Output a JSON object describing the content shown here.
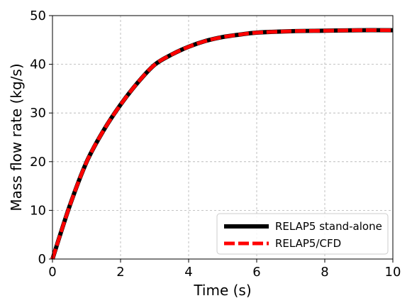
{
  "chart_data": {
    "type": "line",
    "xlabel": "Time (s)",
    "ylabel": "Mass flow rate (kg/s)",
    "xlim": [
      0,
      10
    ],
    "ylim": [
      0,
      50
    ],
    "xticks": [
      0,
      2,
      4,
      6,
      8,
      10
    ],
    "yticks": [
      0,
      10,
      20,
      30,
      40,
      50
    ],
    "xtick_labels": [
      "0",
      "2",
      "4",
      "6",
      "8",
      "10"
    ],
    "ytick_labels": [
      "0",
      "10",
      "20",
      "30",
      "40",
      "50"
    ],
    "grid": true,
    "legend_position": "bottom-right",
    "series": [
      {
        "name": "RELAP5 stand-alone",
        "color": "#000000",
        "style": "solid",
        "x": [
          0,
          0.5,
          1,
          1.5,
          2,
          2.5,
          3,
          3.5,
          4,
          4.5,
          5,
          5.5,
          6,
          7,
          8,
          9,
          10
        ],
        "y": [
          0,
          10.8,
          19.9,
          26.4,
          31.7,
          36.2,
          39.9,
          42.0,
          43.6,
          44.8,
          45.6,
          46.1,
          46.5,
          46.8,
          46.9,
          47.0,
          47.0
        ]
      },
      {
        "name": "RELAP5/CFD",
        "color": "#ff0000",
        "style": "dashed",
        "x": [
          0,
          0.5,
          1,
          1.5,
          2,
          2.5,
          3,
          3.5,
          4,
          4.5,
          5,
          5.5,
          6,
          7,
          8,
          9,
          10
        ],
        "y": [
          0,
          10.8,
          19.9,
          26.4,
          31.7,
          36.2,
          39.9,
          42.0,
          43.6,
          44.8,
          45.6,
          46.1,
          46.5,
          46.8,
          46.9,
          47.0,
          47.0
        ]
      }
    ]
  }
}
